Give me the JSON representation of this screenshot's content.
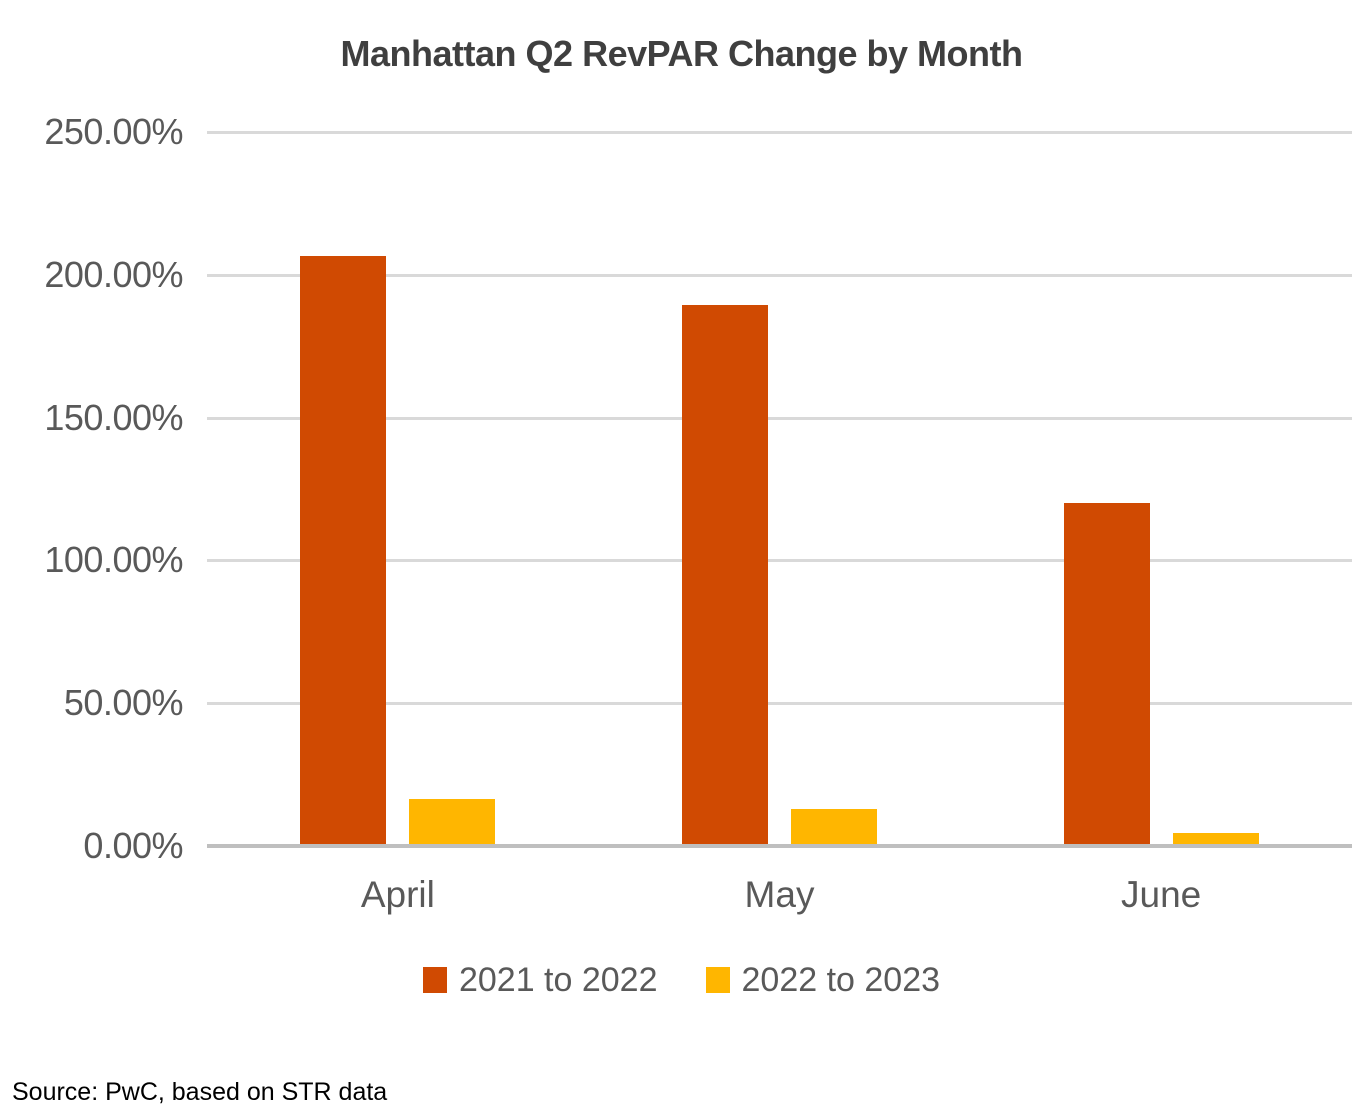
{
  "title": "Manhattan Q2 RevPAR Change by Month",
  "source_note": "Source: PwC, based on STR data",
  "colors": {
    "series_1": "#D04A02",
    "series_2": "#FFB600",
    "gridline": "#D9D9D9",
    "axis_line": "#BFBFBF",
    "title_text": "#3F3F3F",
    "tick_text": "#595959"
  },
  "chart_data": {
    "type": "bar",
    "title": "Manhattan Q2 RevPAR Change by Month",
    "categories": [
      "April",
      "May",
      "June"
    ],
    "series": [
      {
        "name": "2021 to 2022",
        "color": "#D04A02",
        "values": [
          206.6,
          189.3,
          120.0
        ]
      },
      {
        "name": "2022 to 2023",
        "color": "#FFB600",
        "values": [
          16.6,
          13.1,
          4.6
        ]
      }
    ],
    "xlabel": "",
    "ylabel": "",
    "ylim": [
      0,
      250
    ],
    "ytick_step": 50,
    "ytick_labels": [
      "0.00%",
      "50.00%",
      "100.00%",
      "150.00%",
      "200.00%",
      "250.00%"
    ],
    "grid": true,
    "legend_position": "bottom"
  }
}
